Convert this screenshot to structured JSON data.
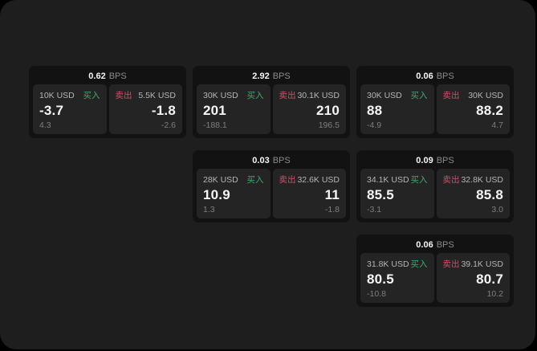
{
  "labels": {
    "bps": "BPS",
    "buy": "买入",
    "sell": "卖出"
  },
  "colors": {
    "page_background": "#000000",
    "panel_background": "#1e1e1e",
    "card_background": "#121212",
    "tile_background": "#242424",
    "buy_green": "#3cab6f",
    "sell_red": "#c9506a"
  },
  "cards": [
    {
      "bps": "0.62",
      "buy": {
        "amount": "10K USD",
        "value": "-3.7",
        "delta": "4.3"
      },
      "sell": {
        "amount": "5.5K USD",
        "value": "-1.8",
        "delta": "-2.6"
      }
    },
    {
      "bps": "2.92",
      "buy": {
        "amount": "30K USD",
        "value": "201",
        "delta": "-188.1"
      },
      "sell": {
        "amount": "30.1K USD",
        "value": "210",
        "delta": "196.5"
      }
    },
    {
      "bps": "0.06",
      "buy": {
        "amount": "30K USD",
        "value": "88",
        "delta": "-4.9"
      },
      "sell": {
        "amount": "30K USD",
        "value": "88.2",
        "delta": "4.7"
      }
    },
    {
      "bps": "0.03",
      "buy": {
        "amount": "28K USD",
        "value": "10.9",
        "delta": "1.3"
      },
      "sell": {
        "amount": "32.6K USD",
        "value": "11",
        "delta": "-1.8"
      }
    },
    {
      "bps": "0.09",
      "buy": {
        "amount": "34.1K USD",
        "value": "85.5",
        "delta": "-3.1"
      },
      "sell": {
        "amount": "32.8K USD",
        "value": "85.8",
        "delta": "3.0"
      }
    },
    {
      "bps": "0.06",
      "buy": {
        "amount": "31.8K USD",
        "value": "80.5",
        "delta": "-10.8"
      },
      "sell": {
        "amount": "39.1K USD",
        "value": "80.7",
        "delta": "10.2"
      }
    }
  ]
}
